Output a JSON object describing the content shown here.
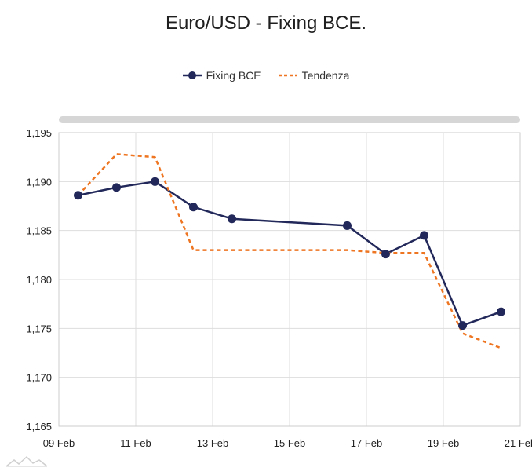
{
  "chart_data": {
    "type": "line",
    "title": "Euro/USD - Fixing BCE.",
    "xlabel": "",
    "ylabel": "",
    "ylim": [
      1.165,
      1.195
    ],
    "yticks": [
      1.165,
      1.17,
      1.175,
      1.18,
      1.185,
      1.19,
      1.195
    ],
    "ytick_labels": [
      "1,165",
      "1,170",
      "1,175",
      "1,180",
      "1,185",
      "1,190",
      "1,195"
    ],
    "xlim": [
      "2026-02-09",
      "2026-02-21"
    ],
    "xtick_labels": [
      "09 Feb",
      "11 Feb",
      "13 Feb",
      "15 Feb",
      "17 Feb",
      "19 Feb",
      "21 Feb"
    ],
    "grid": true,
    "legend_position": "top-center",
    "series": [
      {
        "name": "Fixing BCE",
        "style": "solid",
        "marker": "circle",
        "color": "#22295a",
        "points": [
          {
            "x": "2026-02-09 12:00",
            "y": 1.1886
          },
          {
            "x": "2026-02-10 12:00",
            "y": 1.1894
          },
          {
            "x": "2026-02-11 12:00",
            "y": 1.19
          },
          {
            "x": "2026-02-12 12:00",
            "y": 1.1874
          },
          {
            "x": "2026-02-13 12:00",
            "y": 1.1862
          },
          {
            "x": "2026-02-16 12:00",
            "y": 1.1855
          },
          {
            "x": "2026-02-17 12:00",
            "y": 1.1826
          },
          {
            "x": "2026-02-18 12:00",
            "y": 1.1845
          },
          {
            "x": "2026-02-19 12:00",
            "y": 1.1753
          },
          {
            "x": "2026-02-20 12:00",
            "y": 1.1767
          }
        ]
      },
      {
        "name": "Tendenza",
        "style": "dashed",
        "color": "#ee7622",
        "points": [
          {
            "x": "2026-02-09 12:00",
            "y": 1.1886
          },
          {
            "x": "2026-02-10 12:00",
            "y": 1.1928
          },
          {
            "x": "2026-02-11 12:00",
            "y": 1.1925
          },
          {
            "x": "2026-02-12 12:00",
            "y": 1.183
          },
          {
            "x": "2026-02-13 12:00",
            "y": 1.183
          },
          {
            "x": "2026-02-16 12:00",
            "y": 1.183
          },
          {
            "x": "2026-02-17 12:00",
            "y": 1.1827
          },
          {
            "x": "2026-02-18 12:00",
            "y": 1.1827
          },
          {
            "x": "2026-02-19 12:00",
            "y": 1.1745
          },
          {
            "x": "2026-02-20 12:00",
            "y": 1.173
          }
        ]
      }
    ]
  }
}
